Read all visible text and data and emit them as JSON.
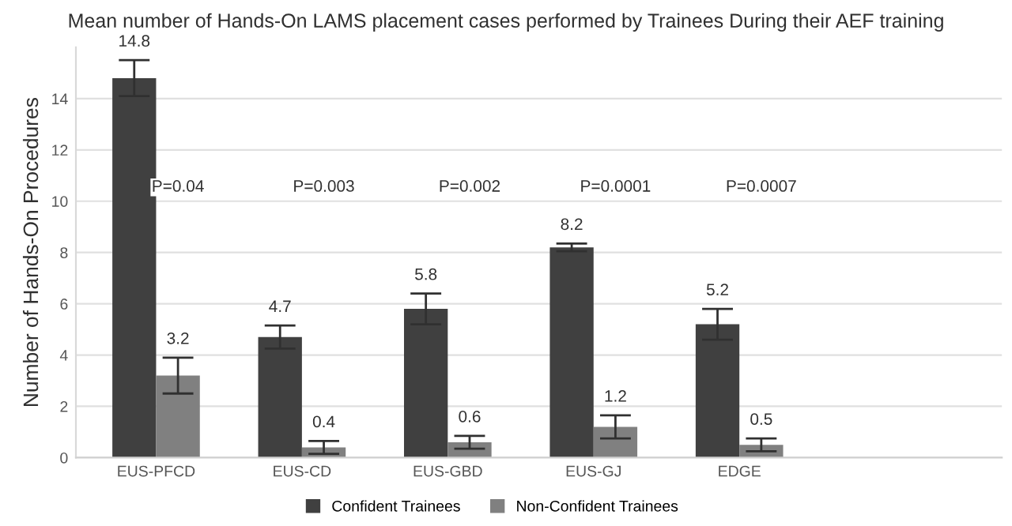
{
  "chart_data": {
    "type": "bar",
    "title": "Mean number of Hands-On LAMS placement cases performed by Trainees During their AEF training",
    "ylabel": "Number of Hands-On Procedures",
    "categories": [
      "EUS-PFCD",
      "EUS-CD",
      "EUS-GBD",
      "EUS-GJ",
      "EDGE"
    ],
    "series": [
      {
        "name": "Confident Trainees",
        "color": "#404040",
        "values": [
          14.8,
          4.7,
          5.8,
          8.2,
          5.2
        ],
        "errors": [
          0.7,
          0.45,
          0.6,
          0.15,
          0.6
        ]
      },
      {
        "name": "Non-Confident Trainees",
        "color": "#808080",
        "values": [
          3.2,
          0.4,
          0.6,
          1.2,
          0.5
        ],
        "errors": [
          0.7,
          0.25,
          0.25,
          0.45,
          0.25
        ]
      }
    ],
    "ylim": [
      0,
      16
    ],
    "yticks": [
      0,
      2,
      4,
      6,
      8,
      10,
      12,
      14
    ],
    "grid": "y",
    "legend": "bottom",
    "data_labels": true,
    "annotations": [
      "P=0.04",
      "P=0.003",
      "P=0.002",
      "P=0.0001",
      "P=0.0007"
    ]
  }
}
